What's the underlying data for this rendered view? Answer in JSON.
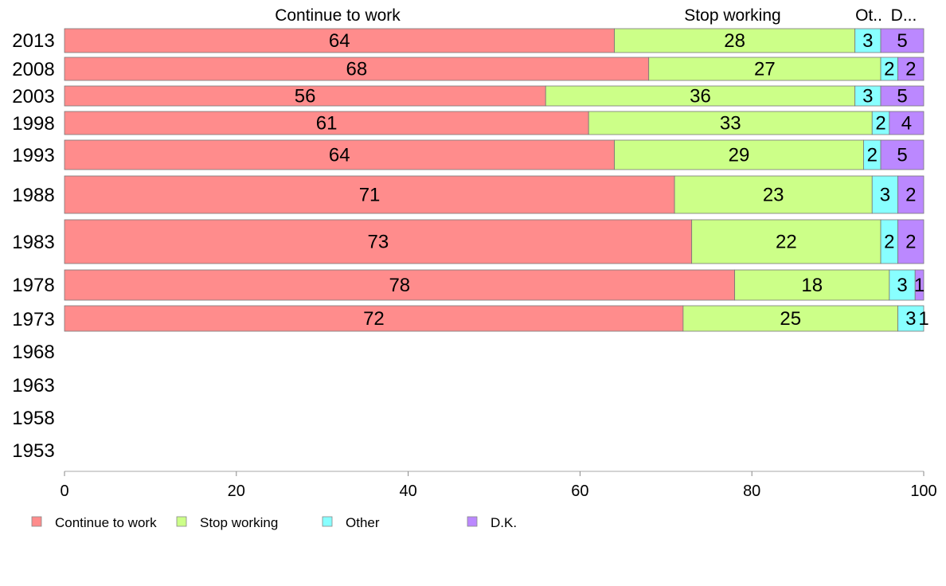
{
  "chart_data": {
    "type": "bar",
    "orientation": "horizontal",
    "stacked": true,
    "xlim": [
      0,
      100
    ],
    "xticks": [
      "0",
      "20",
      "40",
      "60",
      "80",
      "100"
    ],
    "column_headers": [
      "Continue to work",
      "Stop working",
      "Ot..",
      "D..."
    ],
    "categories": [
      "2013",
      "2008",
      "2003",
      "1998",
      "1993",
      "1988",
      "1983",
      "1978",
      "1973",
      "1968",
      "1963",
      "1958",
      "1953"
    ],
    "series": [
      {
        "name": "Continue to work",
        "color": "#ff8c8c",
        "values": [
          64,
          68,
          56,
          61,
          64,
          71,
          73,
          78,
          72,
          null,
          null,
          null,
          null
        ]
      },
      {
        "name": "Stop working",
        "color": "#ccff88",
        "values": [
          28,
          27,
          36,
          33,
          29,
          23,
          22,
          18,
          25,
          null,
          null,
          null,
          null
        ]
      },
      {
        "name": "Other",
        "color": "#88ffff",
        "values": [
          3,
          2,
          3,
          2,
          2,
          3,
          2,
          3,
          3,
          null,
          null,
          null,
          null
        ]
      },
      {
        "name": "D.K.",
        "color": "#bb88ff",
        "values": [
          5,
          2,
          5,
          4,
          5,
          2,
          2,
          1,
          1,
          null,
          null,
          null,
          null
        ]
      }
    ],
    "legend_position": "bottom"
  }
}
